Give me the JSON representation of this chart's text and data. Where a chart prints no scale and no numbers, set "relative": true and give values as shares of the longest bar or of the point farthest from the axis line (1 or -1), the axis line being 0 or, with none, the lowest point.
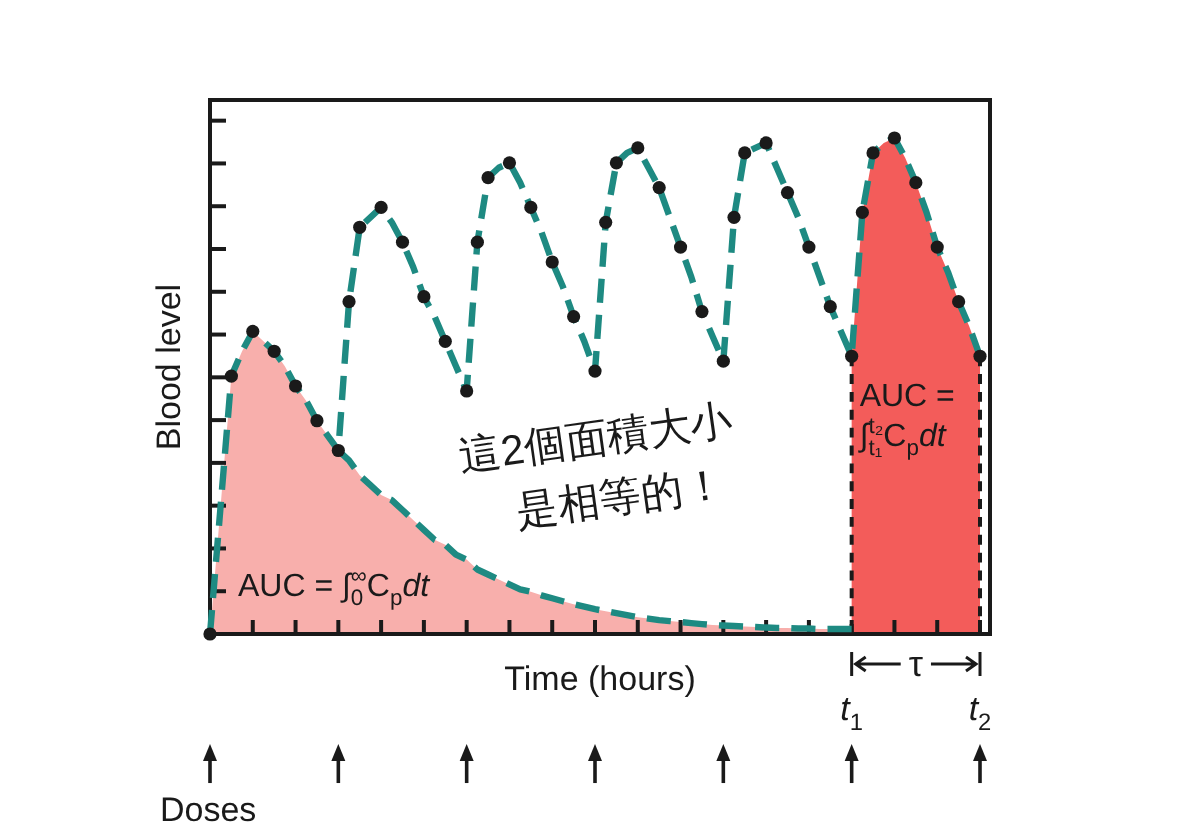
{
  "chart_data": {
    "type": "line",
    "xlabel": "Time (hours)",
    "ylabel": "Blood level",
    "relative": true,
    "categories": [
      null,
      null,
      null,
      null,
      null,
      null,
      null,
      null,
      null,
      null,
      null,
      null,
      null,
      null,
      null,
      null,
      null,
      null,
      null,
      null,
      null,
      null,
      null,
      null,
      null,
      null,
      null,
      null,
      null,
      null,
      null,
      null,
      null,
      null,
      null,
      null,
      null,
      null,
      null,
      null,
      null,
      null,
      null,
      null,
      null,
      null,
      null,
      null,
      null,
      null,
      null,
      null,
      null,
      null,
      null,
      null,
      null,
      null,
      null,
      null,
      "*t*$_{1}$",
      null,
      null,
      null,
      null,
      null,
      null,
      null,
      null,
      null,
      null,
      null,
      "*t*$_{2}$"
    ],
    "series": [
      {
        "type": "area",
        "color": "#f8afac",
        "values": [
          0,
          0.26,
          0.52,
          0.57,
          0.61,
          0.59,
          0.57,
          0.54,
          0.5,
          0.47,
          0.43,
          0.4,
          0.37,
          0.35,
          0.32,
          0.3,
          0.28,
          0.27,
          0.25,
          0.23,
          0.21,
          0.19,
          0.18,
          0.16,
          0.15,
          0.13,
          0.12,
          0.11,
          0.1,
          0.09,
          0.085,
          0.078,
          0.072,
          0.066,
          0.06,
          0.055,
          0.05,
          0.046,
          0.042,
          0.038,
          0.034,
          0.031,
          0.028,
          0.026,
          0.024,
          0.022,
          0.02,
          0.018,
          0.017,
          0.016,
          0.015,
          0.014,
          0.013,
          0.012,
          0.012,
          0.011,
          0.011,
          0.01,
          0.01,
          0.01,
          0.01,
          null,
          null,
          null,
          null,
          null,
          null,
          null,
          null,
          null,
          null,
          null,
          null
        ]
      },
      {
        "type": "area",
        "color": "#f35c5a",
        "line_style": "dashed",
        "values": [
          null,
          null,
          null,
          null,
          null,
          null,
          null,
          null,
          null,
          null,
          null,
          null,
          null,
          null,
          null,
          null,
          null,
          null,
          null,
          null,
          null,
          null,
          null,
          null,
          null,
          null,
          null,
          null,
          null,
          null,
          null,
          null,
          null,
          null,
          null,
          null,
          null,
          null,
          null,
          null,
          null,
          null,
          null,
          null,
          null,
          null,
          null,
          null,
          null,
          null,
          null,
          null,
          null,
          null,
          null,
          null,
          null,
          null,
          null,
          null,
          0.56,
          0.85,
          0.97,
          0.99,
          1,
          0.96,
          0.91,
          0.85,
          0.78,
          0.73,
          0.67,
          0.62,
          0.56
        ]
      },
      {
        "color": "#1e8a82",
        "line_style": "dashed",
        "values": [
          null,
          null,
          null,
          null,
          null,
          null,
          null,
          null,
          null,
          null,
          null,
          null,
          0.37,
          0.35,
          0.32,
          0.3,
          0.28,
          0.27,
          0.25,
          0.23,
          0.21,
          0.19,
          0.18,
          0.16,
          0.15,
          0.13,
          0.12,
          0.11,
          0.1,
          0.09,
          0.085,
          0.078,
          0.072,
          0.066,
          0.06,
          0.055,
          0.05,
          0.046,
          0.042,
          0.038,
          0.034,
          0.031,
          0.028,
          0.026,
          0.024,
          0.022,
          0.02,
          0.018,
          0.017,
          0.016,
          0.015,
          0.014,
          0.013,
          0.012,
          0.012,
          0.011,
          0.011,
          0.01,
          0.01,
          0.01,
          0.01,
          null,
          null,
          null,
          null,
          null,
          null,
          null,
          null,
          null,
          null,
          null,
          null
        ]
      },
      {
        "color": "#1e8a82",
        "line_style": "dashed",
        "values": [
          0,
          0.26,
          0.52,
          0.57,
          0.61,
          0.59,
          0.57,
          0.54,
          0.5,
          0.47,
          0.43,
          0.4,
          0.37,
          0.67,
          0.82,
          0.84,
          0.86,
          0.83,
          0.79,
          0.74,
          0.68,
          0.64,
          0.59,
          0.54,
          0.49,
          0.79,
          0.92,
          0.94,
          0.95,
          0.91,
          0.86,
          0.81,
          0.75,
          0.7,
          0.64,
          0.59,
          0.53,
          0.83,
          0.95,
          0.97,
          0.98,
          0.94,
          0.9,
          0.84,
          0.78,
          0.72,
          0.65,
          0.6,
          0.55,
          0.84,
          0.97,
          0.98,
          0.99,
          0.94,
          0.89,
          0.84,
          0.78,
          0.72,
          0.66,
          0.61,
          0.56,
          0.85,
          0.97,
          0.99,
          1,
          0.96,
          0.91,
          0.85,
          0.78,
          0.73,
          0.67,
          0.62,
          0.56
        ]
      },
      {
        "type": "scatter",
        "color": "#1a1a1a",
        "marker": "circle",
        "values": [
          0,
          null,
          0.52,
          null,
          0.61,
          null,
          0.57,
          null,
          0.5,
          null,
          0.43,
          null,
          0.37,
          0.67,
          0.82,
          null,
          0.86,
          null,
          0.79,
          null,
          0.68,
          null,
          0.59,
          null,
          0.49,
          0.79,
          0.92,
          null,
          0.95,
          null,
          0.86,
          null,
          0.75,
          null,
          0.64,
          null,
          0.53,
          0.83,
          0.95,
          null,
          0.98,
          null,
          0.9,
          null,
          0.78,
          null,
          0.65,
          null,
          0.55,
          0.84,
          0.97,
          null,
          0.99,
          null,
          0.89,
          null,
          0.78,
          null,
          0.66,
          null,
          0.56,
          0.85,
          0.97,
          null,
          1,
          null,
          0.91,
          null,
          0.78,
          null,
          0.67,
          null,
          0.56
        ]
      },
      {
        "type": "scatter",
        "name": "Doses",
        "color": "#1a1a1a",
        "marker": "triangle",
        "values": [
          -0.24,
          null,
          null,
          null,
          null,
          null,
          null,
          null,
          null,
          null,
          null,
          null,
          -0.24,
          null,
          null,
          null,
          null,
          null,
          null,
          null,
          null,
          null,
          null,
          null,
          -0.24,
          null,
          null,
          null,
          null,
          null,
          null,
          null,
          null,
          null,
          null,
          null,
          -0.24,
          null,
          null,
          null,
          null,
          null,
          null,
          null,
          null,
          null,
          null,
          null,
          -0.24,
          null,
          null,
          null,
          null,
          null,
          null,
          null,
          null,
          null,
          null,
          null,
          -0.24,
          null,
          null,
          null,
          null,
          null,
          null,
          null,
          null,
          null,
          null,
          null,
          -0.24
        ]
      }
    ],
    "annotations": [
      "AUC = ∫$_{0}$$^{∞}$C$_{p}$*dt*",
      "AUC = ∫$_{t₁}$$^{t₂}$C$_{p}$*dt*",
      "τ",
      "這2個面積大小是相等的！"
    ]
  }
}
